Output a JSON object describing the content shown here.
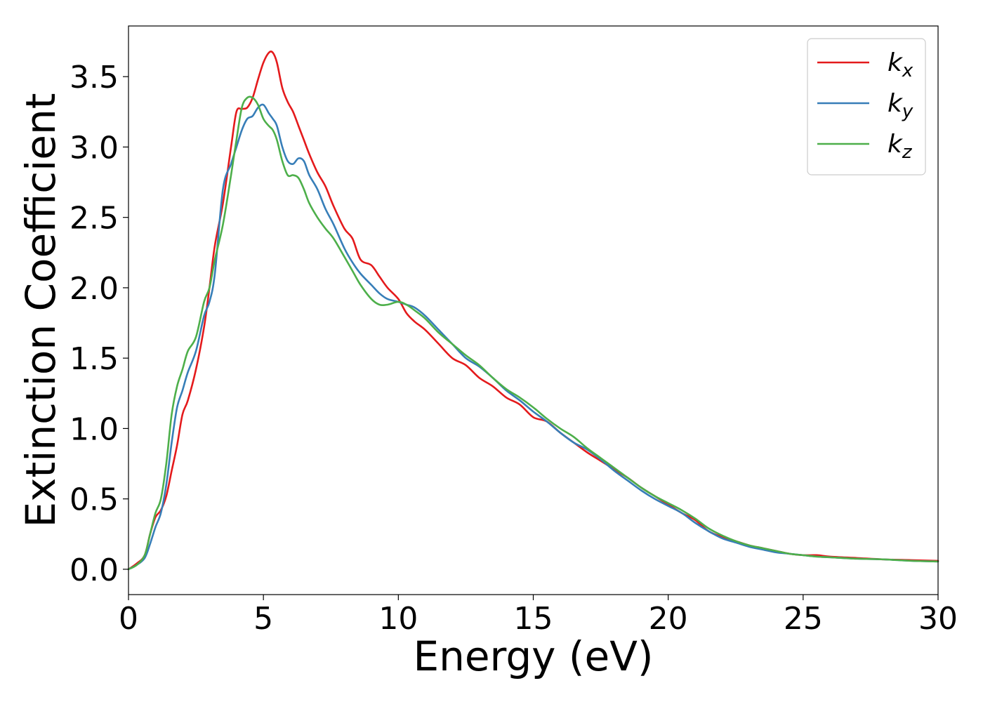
{
  "chart_data": {
    "type": "line",
    "title": "",
    "xlabel": "Energy (eV)",
    "ylabel": "Extinction Coefficient",
    "xlim": [
      0,
      30
    ],
    "ylim": [
      -0.18,
      3.86
    ],
    "xticks": [
      0,
      5,
      10,
      15,
      20,
      25,
      30
    ],
    "yticks": [
      0.0,
      0.5,
      1.0,
      1.5,
      2.0,
      2.5,
      3.0,
      3.5
    ],
    "grid": false,
    "legend_position": "top-right",
    "series": [
      {
        "name": "k",
        "subscript": "x",
        "color": "#e41a1c",
        "x": [
          0,
          0.3,
          0.6,
          0.8,
          1.0,
          1.2,
          1.4,
          1.6,
          1.8,
          2.0,
          2.2,
          2.5,
          2.8,
          3.0,
          3.2,
          3.5,
          3.8,
          4.0,
          4.2,
          4.4,
          4.6,
          4.8,
          5.0,
          5.2,
          5.35,
          5.5,
          5.7,
          5.9,
          6.1,
          6.3,
          6.5,
          6.7,
          7.0,
          7.3,
          7.6,
          8.0,
          8.3,
          8.6,
          9.0,
          9.3,
          9.6,
          10.0,
          10.3,
          10.6,
          11.0,
          11.5,
          12.0,
          12.5,
          13.0,
          13.5,
          14.0,
          14.5,
          15.0,
          15.5,
          16.0,
          16.5,
          17.0,
          17.5,
          18.0,
          18.5,
          19.0,
          19.5,
          20.0,
          20.5,
          21.0,
          21.5,
          22.0,
          22.5,
          23.0,
          23.5,
          24.0,
          24.5,
          25.0,
          25.5,
          26.0,
          27.0,
          28.0,
          29.0,
          30.0
        ],
        "y": [
          0.0,
          0.04,
          0.1,
          0.25,
          0.37,
          0.42,
          0.52,
          0.7,
          0.88,
          1.1,
          1.2,
          1.42,
          1.72,
          2.0,
          2.3,
          2.6,
          3.0,
          3.25,
          3.27,
          3.28,
          3.35,
          3.48,
          3.6,
          3.67,
          3.67,
          3.6,
          3.42,
          3.32,
          3.25,
          3.15,
          3.05,
          2.95,
          2.82,
          2.72,
          2.58,
          2.42,
          2.35,
          2.2,
          2.16,
          2.08,
          2.0,
          1.92,
          1.82,
          1.76,
          1.7,
          1.6,
          1.5,
          1.45,
          1.36,
          1.3,
          1.22,
          1.17,
          1.08,
          1.05,
          0.97,
          0.9,
          0.83,
          0.77,
          0.71,
          0.65,
          0.58,
          0.52,
          0.46,
          0.4,
          0.35,
          0.27,
          0.23,
          0.2,
          0.17,
          0.15,
          0.13,
          0.11,
          0.1,
          0.1,
          0.09,
          0.08,
          0.07,
          0.065,
          0.06
        ]
      },
      {
        "name": "k",
        "subscript": "y",
        "color": "#377eb8",
        "x": [
          0,
          0.3,
          0.6,
          0.8,
          1.0,
          1.2,
          1.4,
          1.6,
          1.8,
          2.0,
          2.2,
          2.5,
          2.8,
          3.0,
          3.2,
          3.5,
          3.8,
          4.0,
          4.2,
          4.4,
          4.6,
          4.8,
          5.0,
          5.2,
          5.35,
          5.5,
          5.7,
          5.9,
          6.1,
          6.3,
          6.5,
          6.7,
          7.0,
          7.3,
          7.6,
          8.0,
          8.3,
          8.6,
          9.0,
          9.3,
          9.6,
          10.0,
          10.3,
          10.6,
          11.0,
          11.5,
          12.0,
          12.5,
          13.0,
          13.5,
          14.0,
          14.5,
          15.0,
          15.5,
          16.0,
          16.5,
          17.0,
          17.5,
          18.0,
          18.5,
          19.0,
          19.5,
          20.0,
          20.5,
          21.0,
          21.5,
          22.0,
          22.5,
          23.0,
          23.5,
          24.0,
          24.5,
          25.0,
          25.5,
          26.0,
          27.0,
          28.0,
          29.0,
          30.0
        ],
        "y": [
          0.0,
          0.03,
          0.08,
          0.18,
          0.3,
          0.4,
          0.6,
          0.9,
          1.15,
          1.27,
          1.4,
          1.55,
          1.8,
          1.9,
          2.1,
          2.7,
          2.88,
          3.0,
          3.12,
          3.2,
          3.22,
          3.28,
          3.3,
          3.24,
          3.2,
          3.15,
          3.0,
          2.9,
          2.88,
          2.92,
          2.9,
          2.8,
          2.7,
          2.56,
          2.45,
          2.28,
          2.18,
          2.1,
          2.02,
          1.96,
          1.92,
          1.9,
          1.88,
          1.86,
          1.8,
          1.7,
          1.6,
          1.5,
          1.44,
          1.36,
          1.27,
          1.2,
          1.12,
          1.05,
          0.97,
          0.9,
          0.85,
          0.78,
          0.7,
          0.63,
          0.56,
          0.5,
          0.45,
          0.4,
          0.33,
          0.27,
          0.22,
          0.19,
          0.16,
          0.14,
          0.12,
          0.11,
          0.1,
          0.09,
          0.085,
          0.075,
          0.07,
          0.06,
          0.055
        ]
      },
      {
        "name": "k",
        "subscript": "z",
        "color": "#4daf4a",
        "x": [
          0,
          0.3,
          0.6,
          0.8,
          1.0,
          1.2,
          1.4,
          1.6,
          1.8,
          2.0,
          2.2,
          2.5,
          2.8,
          3.0,
          3.2,
          3.5,
          3.8,
          4.0,
          4.2,
          4.4,
          4.6,
          4.8,
          5.0,
          5.2,
          5.35,
          5.5,
          5.7,
          5.9,
          6.1,
          6.3,
          6.5,
          6.7,
          7.0,
          7.3,
          7.6,
          8.0,
          8.3,
          8.6,
          9.0,
          9.3,
          9.6,
          10.0,
          10.3,
          10.6,
          11.0,
          11.5,
          12.0,
          12.5,
          13.0,
          13.5,
          14.0,
          14.5,
          15.0,
          15.5,
          16.0,
          16.5,
          17.0,
          17.5,
          18.0,
          18.5,
          19.0,
          19.5,
          20.0,
          20.5,
          21.0,
          21.5,
          22.0,
          22.5,
          23.0,
          23.5,
          24.0,
          24.5,
          25.0,
          25.5,
          26.0,
          27.0,
          28.0,
          29.0,
          30.0
        ],
        "y": [
          0.0,
          0.03,
          0.1,
          0.25,
          0.4,
          0.5,
          0.75,
          1.1,
          1.3,
          1.42,
          1.55,
          1.65,
          1.9,
          2.0,
          2.2,
          2.45,
          2.8,
          3.05,
          3.28,
          3.35,
          3.35,
          3.3,
          3.2,
          3.15,
          3.12,
          3.05,
          2.9,
          2.8,
          2.8,
          2.78,
          2.7,
          2.6,
          2.5,
          2.42,
          2.35,
          2.22,
          2.12,
          2.02,
          1.92,
          1.88,
          1.88,
          1.9,
          1.88,
          1.84,
          1.78,
          1.68,
          1.6,
          1.52,
          1.45,
          1.36,
          1.28,
          1.22,
          1.15,
          1.07,
          1.0,
          0.94,
          0.86,
          0.79,
          0.72,
          0.65,
          0.58,
          0.52,
          0.47,
          0.42,
          0.36,
          0.29,
          0.24,
          0.2,
          0.17,
          0.15,
          0.13,
          0.11,
          0.1,
          0.09,
          0.085,
          0.075,
          0.07,
          0.06,
          0.055
        ]
      }
    ]
  }
}
